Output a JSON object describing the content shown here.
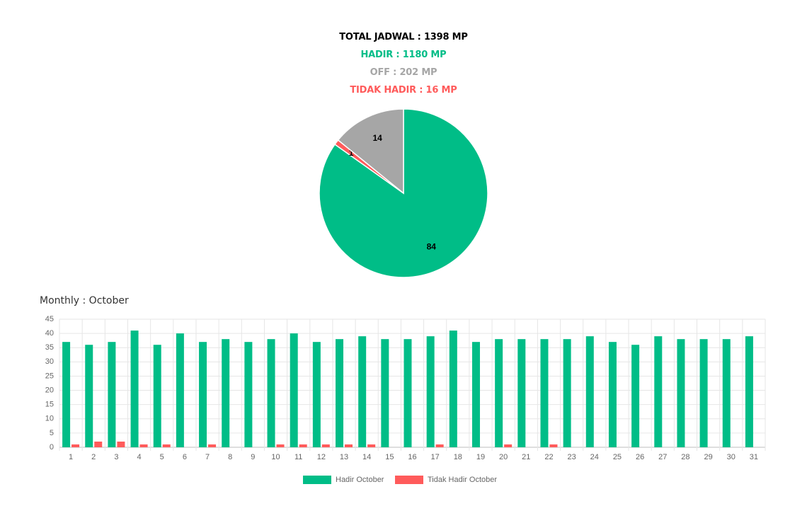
{
  "summary": {
    "total": "TOTAL JADWAL : 1398 MP",
    "hadir": "HADIR : 1180 MP",
    "off": "OFF : 202 MP",
    "tidak_hadir": "TIDAK HADIR : 16 MP"
  },
  "colors": {
    "total": "#000000",
    "hadir": "#00bd87",
    "off": "#a6a6a6",
    "tidak_hadir": "#ff5b5b"
  },
  "monthly_title": "Monthly : October",
  "chart_data": [
    {
      "type": "pie",
      "values": [
        84,
        1,
        14
      ],
      "labels": [
        "84",
        "1",
        "14"
      ],
      "colors": [
        "#00bd87",
        "#ff5b5b",
        "#a6a6a6"
      ]
    },
    {
      "type": "bar",
      "categories": [
        "1",
        "2",
        "3",
        "4",
        "5",
        "6",
        "7",
        "8",
        "9",
        "10",
        "11",
        "12",
        "13",
        "14",
        "15",
        "16",
        "17",
        "18",
        "19",
        "20",
        "21",
        "22",
        "23",
        "24",
        "25",
        "26",
        "27",
        "28",
        "29",
        "30",
        "31"
      ],
      "series": [
        {
          "name": "Hadir October",
          "color": "#00bd87",
          "values": [
            37,
            36,
            37,
            41,
            36,
            40,
            37,
            38,
            37,
            38,
            40,
            37,
            38,
            39,
            38,
            38,
            39,
            41,
            37,
            38,
            38,
            38,
            38,
            39,
            37,
            36,
            39,
            38,
            38,
            38,
            39
          ]
        },
        {
          "name": "Tidak Hadir October",
          "color": "#ff5b5b",
          "values": [
            1,
            2,
            2,
            1,
            1,
            0,
            1,
            0,
            0,
            1,
            1,
            1,
            1,
            1,
            0,
            0,
            1,
            0,
            0,
            1,
            0,
            1,
            0,
            0,
            0,
            0,
            0,
            0,
            0,
            0,
            0
          ]
        }
      ],
      "ylim": [
        0,
        45
      ],
      "yticks": [
        0,
        5,
        10,
        15,
        20,
        25,
        30,
        35,
        40,
        45
      ],
      "grid": true,
      "legend": "bottom"
    }
  ]
}
